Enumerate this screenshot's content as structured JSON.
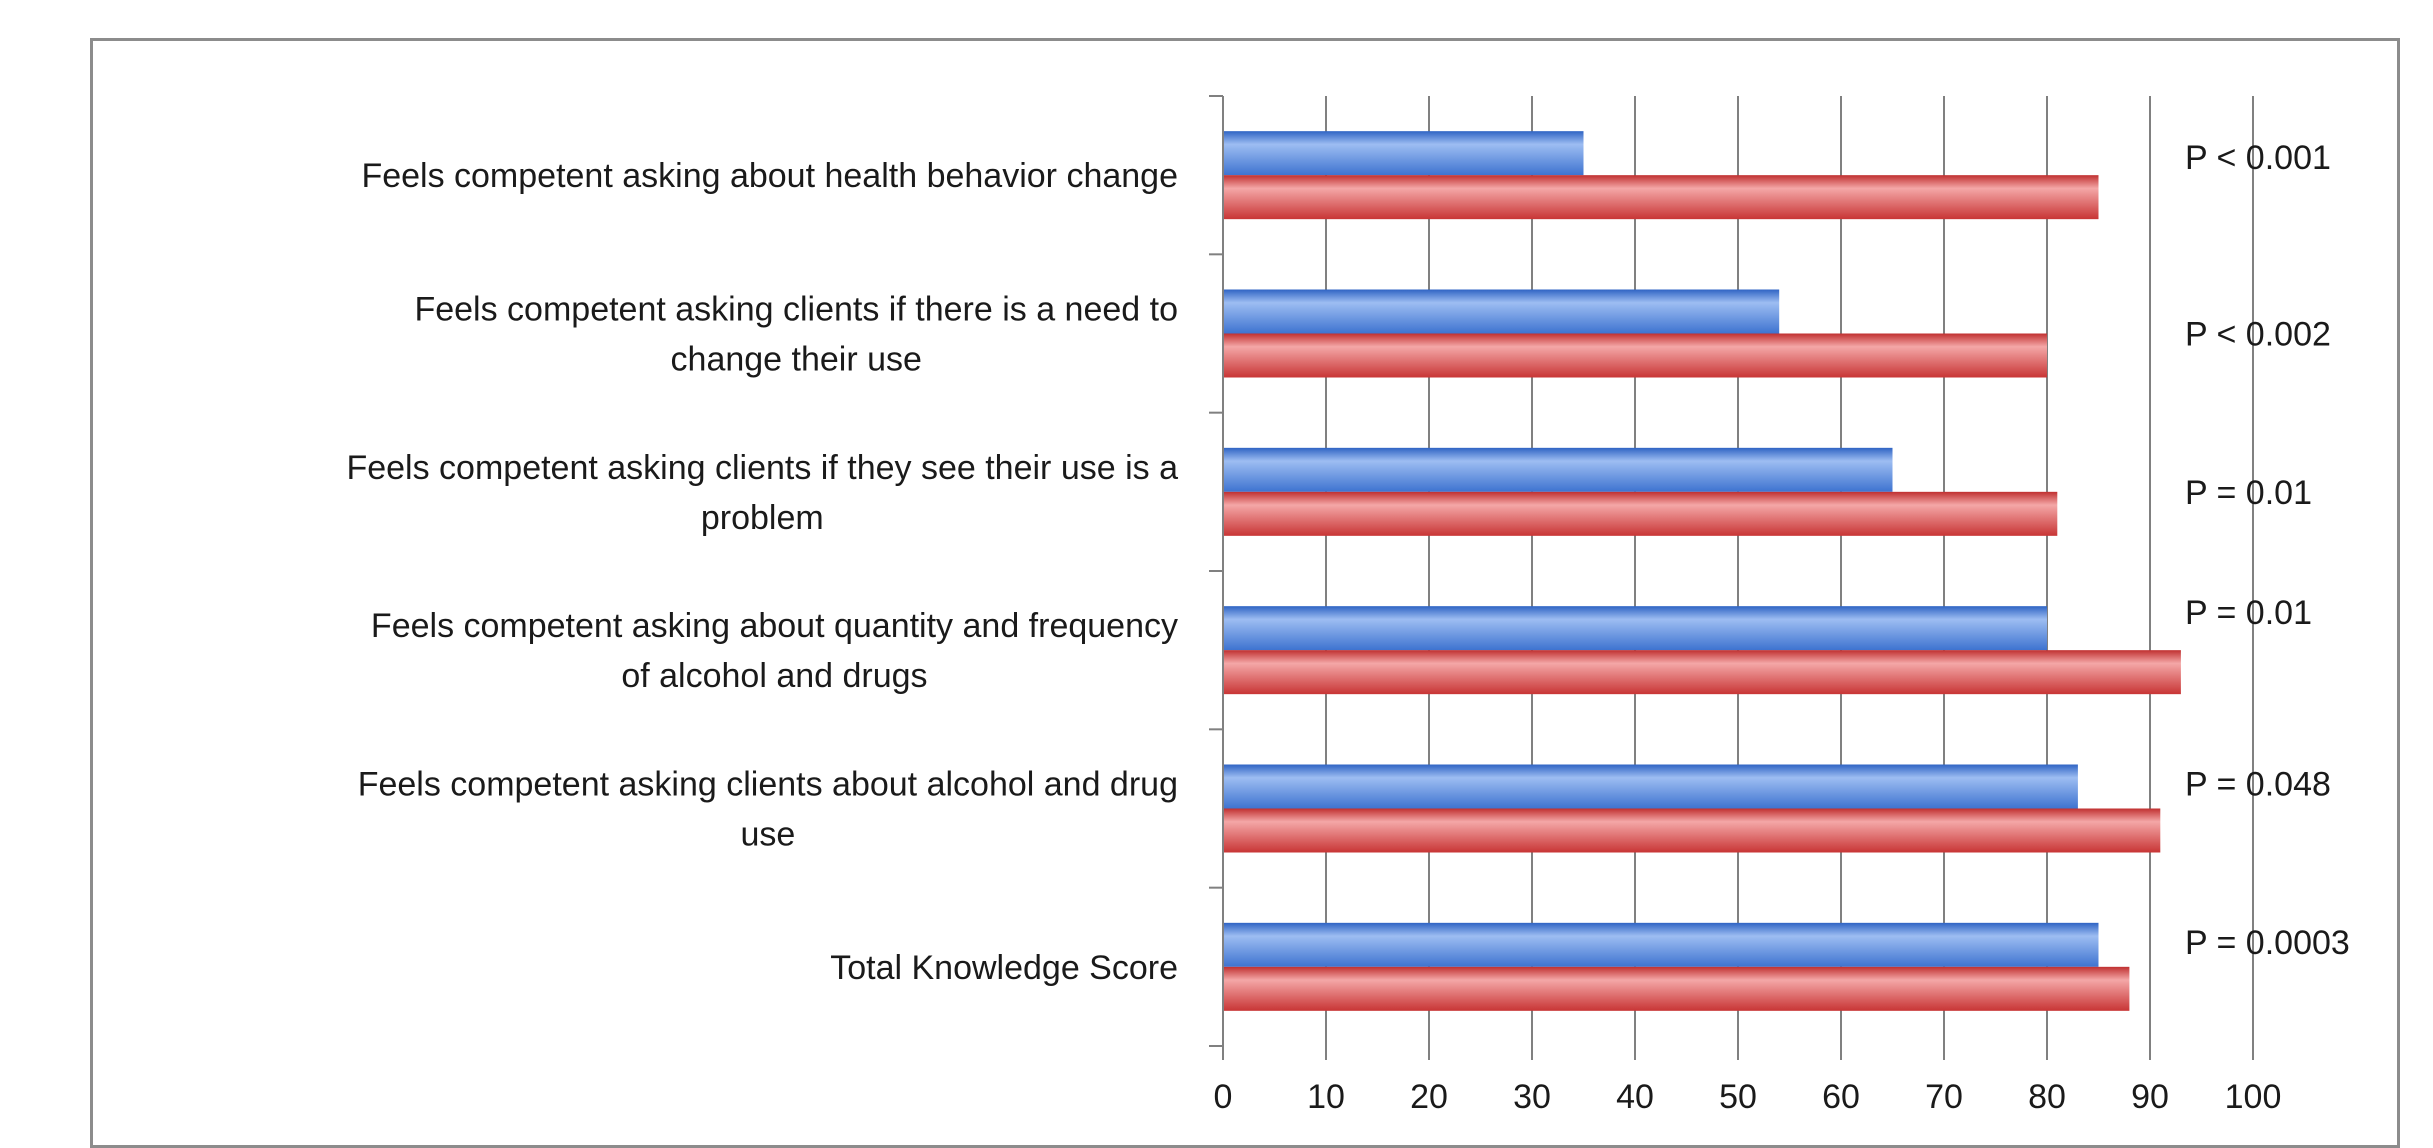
{
  "chart_data": {
    "type": "bar",
    "orientation": "horizontal",
    "categories": [
      "Feels competent asking about health behavior change",
      "Feels competent asking clients if there is a need to change their use",
      "Feels competent asking clients if they see their use is a problem",
      "Feels competent asking about quantity and frequency of alcohol and drugs",
      "Feels competent asking clients about alcohol and drug use",
      "Total Knowledge Score"
    ],
    "category_lines": [
      [
        "Feels competent asking about health behavior change"
      ],
      [
        "Feels competent asking clients if there is a need to",
        "change their use"
      ],
      [
        "Feels competent asking clients if they see their use is a",
        "problem"
      ],
      [
        "Feels competent asking about quantity and frequency",
        "of alcohol and drugs"
      ],
      [
        "Feels competent asking clients about alcohol and drug",
        "use"
      ],
      [
        "Total Knowledge Score"
      ]
    ],
    "series": [
      {
        "values": [
          35,
          54,
          65,
          80,
          83,
          85
        ]
      },
      {
        "values": [
          85,
          80,
          81,
          93,
          91,
          88
        ]
      }
    ],
    "annotations": [
      "P < 0.001",
      "P < 0.002",
      "P = 0.01",
      "P = 0.01",
      "P = 0.048",
      "P = 0.0003"
    ],
    "xlim": [
      0,
      100
    ],
    "xticks": [
      0,
      10,
      20,
      30,
      40,
      50,
      60,
      70,
      80,
      90,
      100
    ],
    "grid": true,
    "colors": {
      "series1": "#4a7fd8",
      "series1_light": "#9dbdf2",
      "series2": "#d64545",
      "series2_light": "#f2a3a3",
      "grid": "#808080",
      "frame": "#8c8c8c"
    }
  }
}
